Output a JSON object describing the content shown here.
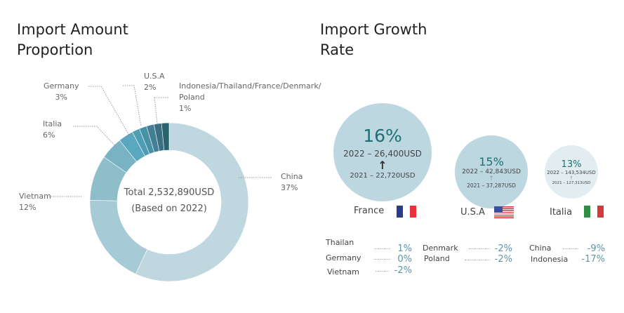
{
  "left_title": [
    "Import Amount",
    "Proportion"
  ],
  "right_title": [
    "Import Growth",
    "Rate"
  ],
  "chart_data": {
    "type": "pie",
    "title": "Import Amount Proportion",
    "center_text": [
      "Total 2,532,890USD",
      "(Based on 2022)"
    ],
    "slices": [
      {
        "label": "China",
        "value": 37,
        "value_label": "37%",
        "color": "#bfd8e0"
      },
      {
        "label": "Vietnam",
        "value": 12,
        "value_label": "12%",
        "color": "#a7cbd6"
      },
      {
        "label": "Italia",
        "value": 6,
        "value_label": "6%",
        "color": "#8fbecb"
      },
      {
        "label": "Germany",
        "value": 3,
        "value_label": "3%",
        "color": "#79b3c3"
      },
      {
        "label": "U.S.A",
        "value": 2,
        "value_label": "2%",
        "color": "#5aa8bd"
      },
      {
        "label": "Indonesia",
        "value": 1,
        "color": "#4e9db3"
      },
      {
        "label": "Thailand",
        "value": 1,
        "color": "#4791a7"
      },
      {
        "label": "France",
        "value": 1,
        "color": "#427f95"
      },
      {
        "label": "Denmark",
        "value": 1,
        "color": "#3b6f82"
      },
      {
        "label": "Poland",
        "value": 1,
        "color": "#28636e"
      }
    ],
    "group_label": [
      "Indonesia/Thailand/France/Denmark/",
      "Poland",
      "1%"
    ]
  },
  "growth": [
    {
      "country": "France",
      "pct": "16%",
      "y2022": "2022 – 26,400USD",
      "y2021": "2021 – 22,720USD",
      "arrow": "↑",
      "flag": "france"
    },
    {
      "country": "U.S.A",
      "pct": "15%",
      "y2022": "2022 – 42,843USD",
      "y2021": "2021 – 37,287USD",
      "arrow": "↑",
      "flag": "usa"
    },
    {
      "country": "Italia",
      "pct": "13%",
      "y2022": "2022 – 143,534USD",
      "y2021": "2021 – 127,313USD",
      "arrow": "↑",
      "flag": "italy"
    }
  ],
  "others": [
    {
      "name": "Thailan",
      "value": "1%"
    },
    {
      "name": "Germany",
      "value": "0%"
    },
    {
      "name": "Vietnam",
      "value": "-2%"
    },
    {
      "name": "Denmark",
      "value": "-2%"
    },
    {
      "name": "Poland",
      "value": "-2%"
    },
    {
      "name": "China",
      "value": "-9%"
    },
    {
      "name": "Indonesia",
      "value": "-17%"
    }
  ]
}
